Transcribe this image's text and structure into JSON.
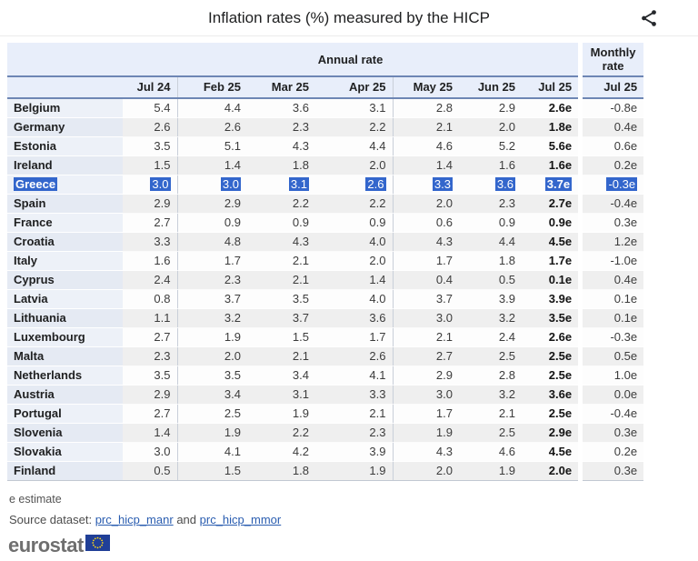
{
  "header": {
    "title": "Inflation rates (%) measured by the HICP",
    "share_icon": "share-icon"
  },
  "chart_data": {
    "type": "table",
    "title": "Inflation rates (%) measured by the HICP",
    "unit": "%",
    "group_headers": {
      "annual": "Annual rate",
      "monthly": "Monthly rate"
    },
    "annual_columns": [
      "Jul 24",
      "Feb 25",
      "Mar 25",
      "Apr 25",
      "May 25",
      "Jun 25",
      "Jul 25"
    ],
    "monthly_column": "Jul 25",
    "estimate_suffix": "e",
    "rows": [
      {
        "country": "Belgium",
        "annual": [
          "5.4",
          "4.4",
          "3.6",
          "3.1",
          "2.8",
          "2.9",
          "2.6e"
        ],
        "monthly": "-0.8e",
        "selected": false
      },
      {
        "country": "Germany",
        "annual": [
          "2.6",
          "2.6",
          "2.3",
          "2.2",
          "2.1",
          "2.0",
          "1.8e"
        ],
        "monthly": "0.4e",
        "selected": false
      },
      {
        "country": "Estonia",
        "annual": [
          "3.5",
          "5.1",
          "4.3",
          "4.4",
          "4.6",
          "5.2",
          "5.6e"
        ],
        "monthly": "0.6e",
        "selected": false
      },
      {
        "country": "Ireland",
        "annual": [
          "1.5",
          "1.4",
          "1.8",
          "2.0",
          "1.4",
          "1.6",
          "1.6e"
        ],
        "monthly": "0.2e",
        "selected": false
      },
      {
        "country": "Greece",
        "annual": [
          "3.0",
          "3.0",
          "3.1",
          "2.6",
          "3.3",
          "3.6",
          "3.7e"
        ],
        "monthly": "-0.3e",
        "selected": true
      },
      {
        "country": "Spain",
        "annual": [
          "2.9",
          "2.9",
          "2.2",
          "2.2",
          "2.0",
          "2.3",
          "2.7e"
        ],
        "monthly": "-0.4e",
        "selected": false
      },
      {
        "country": "France",
        "annual": [
          "2.7",
          "0.9",
          "0.9",
          "0.9",
          "0.6",
          "0.9",
          "0.9e"
        ],
        "monthly": "0.3e",
        "selected": false
      },
      {
        "country": "Croatia",
        "annual": [
          "3.3",
          "4.8",
          "4.3",
          "4.0",
          "4.3",
          "4.4",
          "4.5e"
        ],
        "monthly": "1.2e",
        "selected": false
      },
      {
        "country": "Italy",
        "annual": [
          "1.6",
          "1.7",
          "2.1",
          "2.0",
          "1.7",
          "1.8",
          "1.7e"
        ],
        "monthly": "-1.0e",
        "selected": false
      },
      {
        "country": "Cyprus",
        "annual": [
          "2.4",
          "2.3",
          "2.1",
          "1.4",
          "0.4",
          "0.5",
          "0.1e"
        ],
        "monthly": "0.4e",
        "selected": false
      },
      {
        "country": "Latvia",
        "annual": [
          "0.8",
          "3.7",
          "3.5",
          "4.0",
          "3.7",
          "3.9",
          "3.9e"
        ],
        "monthly": "0.1e",
        "selected": false
      },
      {
        "country": "Lithuania",
        "annual": [
          "1.1",
          "3.2",
          "3.7",
          "3.6",
          "3.0",
          "3.2",
          "3.5e"
        ],
        "monthly": "0.1e",
        "selected": false
      },
      {
        "country": "Luxembourg",
        "annual": [
          "2.7",
          "1.9",
          "1.5",
          "1.7",
          "2.1",
          "2.4",
          "2.6e"
        ],
        "monthly": "-0.3e",
        "selected": false
      },
      {
        "country": "Malta",
        "annual": [
          "2.3",
          "2.0",
          "2.1",
          "2.6",
          "2.7",
          "2.5",
          "2.5e"
        ],
        "monthly": "0.5e",
        "selected": false
      },
      {
        "country": "Netherlands",
        "annual": [
          "3.5",
          "3.5",
          "3.4",
          "4.1",
          "2.9",
          "2.8",
          "2.5e"
        ],
        "monthly": "1.0e",
        "selected": false
      },
      {
        "country": "Austria",
        "annual": [
          "2.9",
          "3.4",
          "3.1",
          "3.3",
          "3.0",
          "3.2",
          "3.6e"
        ],
        "monthly": "0.0e",
        "selected": false
      },
      {
        "country": "Portugal",
        "annual": [
          "2.7",
          "2.5",
          "1.9",
          "2.1",
          "1.7",
          "2.1",
          "2.5e"
        ],
        "monthly": "-0.4e",
        "selected": false
      },
      {
        "country": "Slovenia",
        "annual": [
          "1.4",
          "1.9",
          "2.2",
          "2.3",
          "1.9",
          "2.5",
          "2.9e"
        ],
        "monthly": "0.3e",
        "selected": false
      },
      {
        "country": "Slovakia",
        "annual": [
          "3.0",
          "4.1",
          "4.2",
          "3.9",
          "4.3",
          "4.6",
          "4.5e"
        ],
        "monthly": "0.2e",
        "selected": false
      },
      {
        "country": "Finland",
        "annual": [
          "0.5",
          "1.5",
          "1.8",
          "1.9",
          "2.0",
          "1.9",
          "2.0e"
        ],
        "monthly": "0.3e",
        "selected": false
      }
    ]
  },
  "footer": {
    "estimate_note": "e estimate",
    "source_prefix": "Source dataset:",
    "source_link_1": "prc_hicp_manr",
    "source_conjunction": "and",
    "source_link_2": "prc_hicp_mmor",
    "logo_text": "eurostat"
  },
  "colors": {
    "header_bg": "#e8eefa",
    "header_border": "#6e86b4",
    "selection_highlight": "#3366cc",
    "selection_text": "#ffffff",
    "link": "#2a5db0",
    "stripe_even": "#efefef",
    "country_cell_odd": "#edf1f8",
    "country_cell_even": "#e5eaf3",
    "eu_flag_blue": "#203f97",
    "eu_star_yellow": "#ffd617"
  }
}
